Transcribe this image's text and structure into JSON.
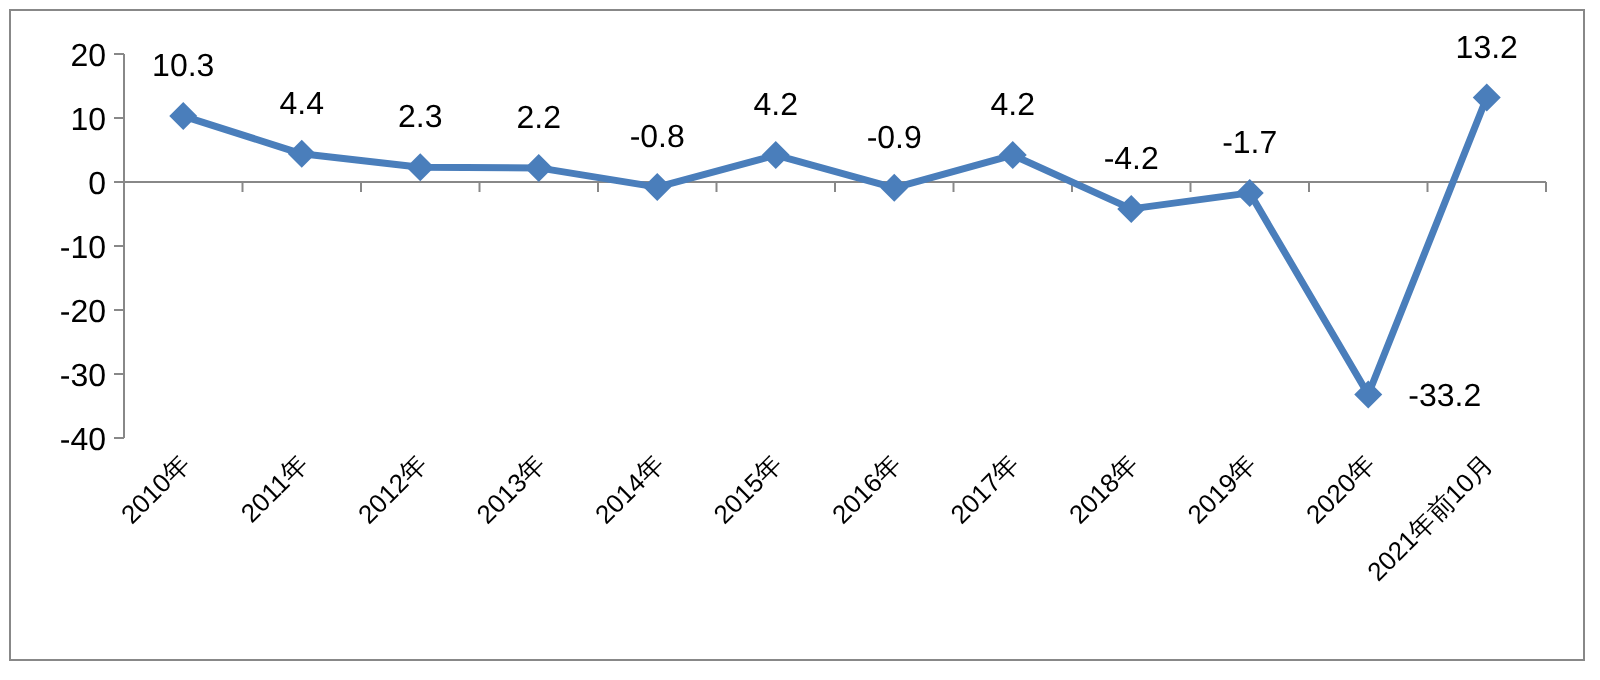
{
  "chart_data": {
    "type": "line",
    "categories": [
      "2010年",
      "2011年",
      "2012年",
      "2013年",
      "2014年",
      "2015年",
      "2016年",
      "2017年",
      "2018年",
      "2019年",
      "2020年",
      "2021年前10月"
    ],
    "series": [
      {
        "color": "#4a7ebb",
        "values": [
          10.3,
          4.4,
          2.3,
          2.2,
          -0.8,
          4.2,
          -0.9,
          4.2,
          -4.2,
          -1.7,
          -33.2,
          13.2
        ]
      }
    ],
    "ylim": [
      -40,
      20
    ],
    "yticks": [
      -40,
      -30,
      -20,
      -10,
      0,
      10,
      20
    ],
    "data_labels": true,
    "marker": "diamond",
    "line_style": "solid"
  }
}
